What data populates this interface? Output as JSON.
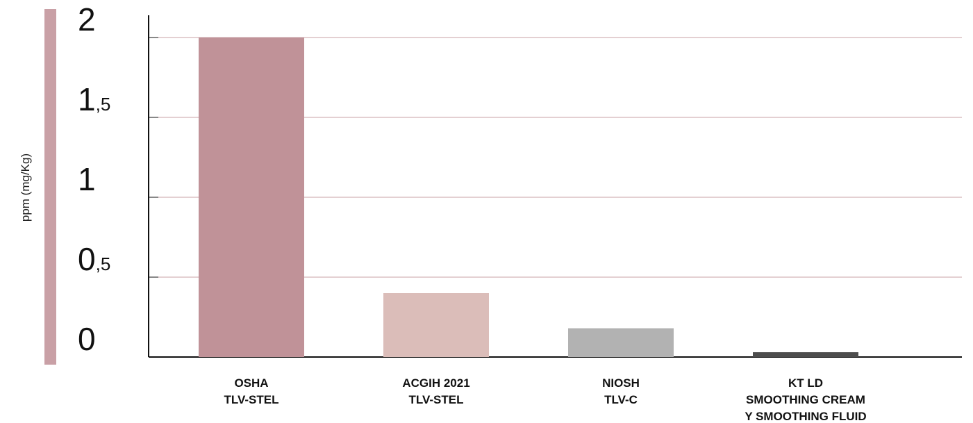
{
  "chart_data": {
    "type": "bar",
    "title": "",
    "ylabel": "ppm (mg/Kg)",
    "xlabel": "",
    "ylim": [
      0,
      2.1
    ],
    "yticks": [
      {
        "value": 0,
        "main": "0",
        "frac": ""
      },
      {
        "value": 0.5,
        "main": "0",
        "frac": ",5"
      },
      {
        "value": 1,
        "main": "1",
        "frac": ""
      },
      {
        "value": 1.5,
        "main": "1",
        "frac": ",5"
      },
      {
        "value": 2,
        "main": "2",
        "frac": ""
      }
    ],
    "categories": [
      {
        "lines": [
          "OSHA",
          "TLV-STEL"
        ]
      },
      {
        "lines": [
          "ACGIH 2021",
          "TLV-STEL"
        ]
      },
      {
        "lines": [
          "NIOSH",
          "TLV-C"
        ]
      },
      {
        "lines": [
          "KT LD",
          "SMOOTHING CREAM",
          "Y SMOOTHING FLUID"
        ]
      }
    ],
    "values": [
      2.0,
      0.4,
      0.18,
      0.03
    ],
    "colors": [
      "#c09298",
      "#dbbdb9",
      "#b2b2b2",
      "#4d4d4d"
    ],
    "grid": true,
    "grid_color": "#c8a0a6",
    "axis_color": "#111111",
    "accent_color": "#c9a0a6"
  }
}
